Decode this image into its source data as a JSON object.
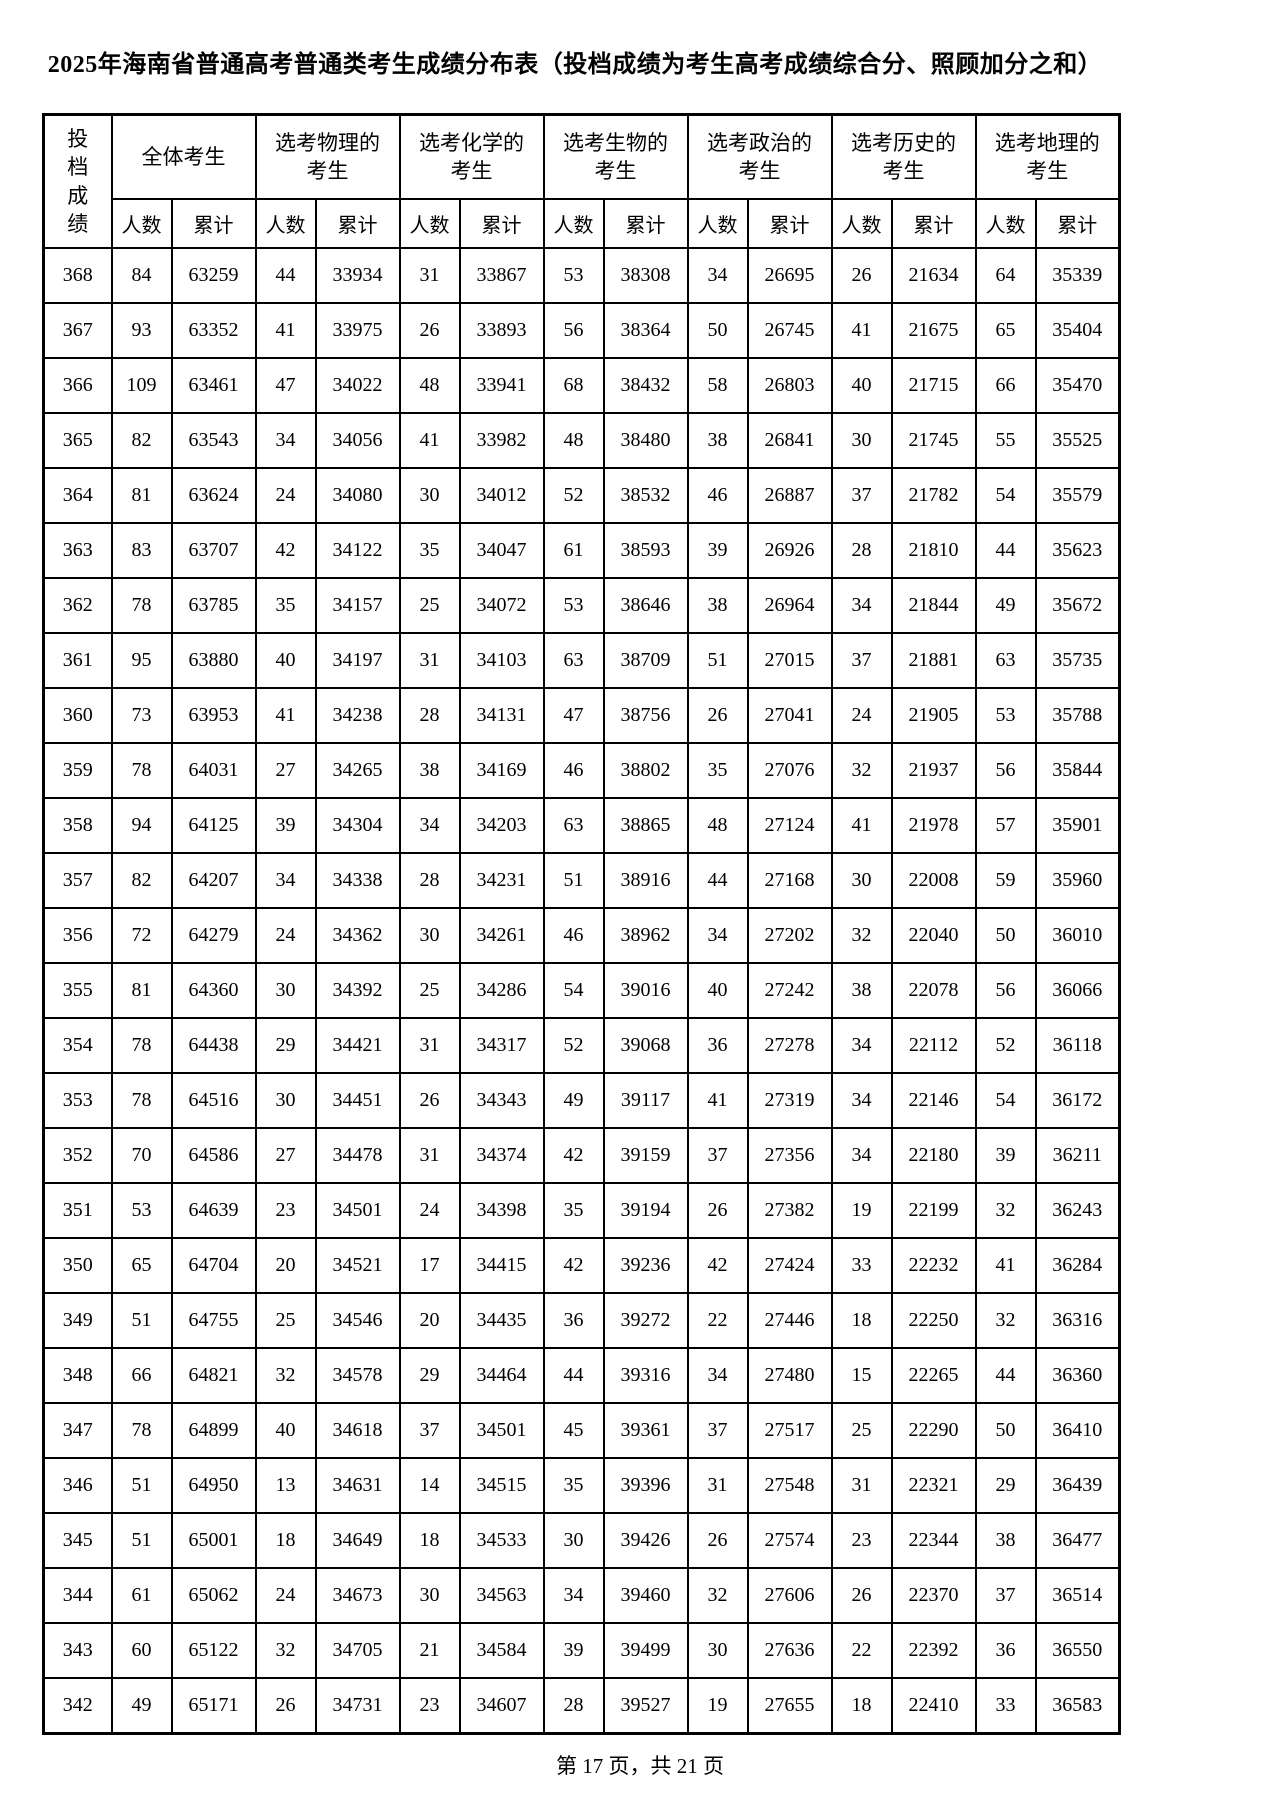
{
  "title": "2025年海南省普通高考普通类考生成绩分布表（投档成绩为考生高考成绩综合分、照顾加分之和）",
  "table": {
    "score_header": "投档成绩",
    "col_count_label": "人数",
    "col_cum_label": "累计",
    "groups": [
      "全体考生",
      "选考物理的考生",
      "选考化学的考生",
      "选考生物的考生",
      "选考政治的考生",
      "选考历史的考生",
      "选考地理的考生"
    ],
    "rows": [
      [
        368,
        84,
        63259,
        44,
        33934,
        31,
        33867,
        53,
        38308,
        34,
        26695,
        26,
        21634,
        64,
        35339
      ],
      [
        367,
        93,
        63352,
        41,
        33975,
        26,
        33893,
        56,
        38364,
        50,
        26745,
        41,
        21675,
        65,
        35404
      ],
      [
        366,
        109,
        63461,
        47,
        34022,
        48,
        33941,
        68,
        38432,
        58,
        26803,
        40,
        21715,
        66,
        35470
      ],
      [
        365,
        82,
        63543,
        34,
        34056,
        41,
        33982,
        48,
        38480,
        38,
        26841,
        30,
        21745,
        55,
        35525
      ],
      [
        364,
        81,
        63624,
        24,
        34080,
        30,
        34012,
        52,
        38532,
        46,
        26887,
        37,
        21782,
        54,
        35579
      ],
      [
        363,
        83,
        63707,
        42,
        34122,
        35,
        34047,
        61,
        38593,
        39,
        26926,
        28,
        21810,
        44,
        35623
      ],
      [
        362,
        78,
        63785,
        35,
        34157,
        25,
        34072,
        53,
        38646,
        38,
        26964,
        34,
        21844,
        49,
        35672
      ],
      [
        361,
        95,
        63880,
        40,
        34197,
        31,
        34103,
        63,
        38709,
        51,
        27015,
        37,
        21881,
        63,
        35735
      ],
      [
        360,
        73,
        63953,
        41,
        34238,
        28,
        34131,
        47,
        38756,
        26,
        27041,
        24,
        21905,
        53,
        35788
      ],
      [
        359,
        78,
        64031,
        27,
        34265,
        38,
        34169,
        46,
        38802,
        35,
        27076,
        32,
        21937,
        56,
        35844
      ],
      [
        358,
        94,
        64125,
        39,
        34304,
        34,
        34203,
        63,
        38865,
        48,
        27124,
        41,
        21978,
        57,
        35901
      ],
      [
        357,
        82,
        64207,
        34,
        34338,
        28,
        34231,
        51,
        38916,
        44,
        27168,
        30,
        22008,
        59,
        35960
      ],
      [
        356,
        72,
        64279,
        24,
        34362,
        30,
        34261,
        46,
        38962,
        34,
        27202,
        32,
        22040,
        50,
        36010
      ],
      [
        355,
        81,
        64360,
        30,
        34392,
        25,
        34286,
        54,
        39016,
        40,
        27242,
        38,
        22078,
        56,
        36066
      ],
      [
        354,
        78,
        64438,
        29,
        34421,
        31,
        34317,
        52,
        39068,
        36,
        27278,
        34,
        22112,
        52,
        36118
      ],
      [
        353,
        78,
        64516,
        30,
        34451,
        26,
        34343,
        49,
        39117,
        41,
        27319,
        34,
        22146,
        54,
        36172
      ],
      [
        352,
        70,
        64586,
        27,
        34478,
        31,
        34374,
        42,
        39159,
        37,
        27356,
        34,
        22180,
        39,
        36211
      ],
      [
        351,
        53,
        64639,
        23,
        34501,
        24,
        34398,
        35,
        39194,
        26,
        27382,
        19,
        22199,
        32,
        36243
      ],
      [
        350,
        65,
        64704,
        20,
        34521,
        17,
        34415,
        42,
        39236,
        42,
        27424,
        33,
        22232,
        41,
        36284
      ],
      [
        349,
        51,
        64755,
        25,
        34546,
        20,
        34435,
        36,
        39272,
        22,
        27446,
        18,
        22250,
        32,
        36316
      ],
      [
        348,
        66,
        64821,
        32,
        34578,
        29,
        34464,
        44,
        39316,
        34,
        27480,
        15,
        22265,
        44,
        36360
      ],
      [
        347,
        78,
        64899,
        40,
        34618,
        37,
        34501,
        45,
        39361,
        37,
        27517,
        25,
        22290,
        50,
        36410
      ],
      [
        346,
        51,
        64950,
        13,
        34631,
        14,
        34515,
        35,
        39396,
        31,
        27548,
        31,
        22321,
        29,
        36439
      ],
      [
        345,
        51,
        65001,
        18,
        34649,
        18,
        34533,
        30,
        39426,
        26,
        27574,
        23,
        22344,
        38,
        36477
      ],
      [
        344,
        61,
        65062,
        24,
        34673,
        30,
        34563,
        34,
        39460,
        32,
        27606,
        26,
        22370,
        37,
        36514
      ],
      [
        343,
        60,
        65122,
        32,
        34705,
        21,
        34584,
        39,
        39499,
        30,
        27636,
        22,
        22392,
        36,
        36550
      ],
      [
        342,
        49,
        65171,
        26,
        34731,
        23,
        34607,
        28,
        39527,
        19,
        27655,
        18,
        22410,
        33,
        36583
      ]
    ]
  },
  "footer": {
    "text": "第 17 页，共 21 页"
  }
}
